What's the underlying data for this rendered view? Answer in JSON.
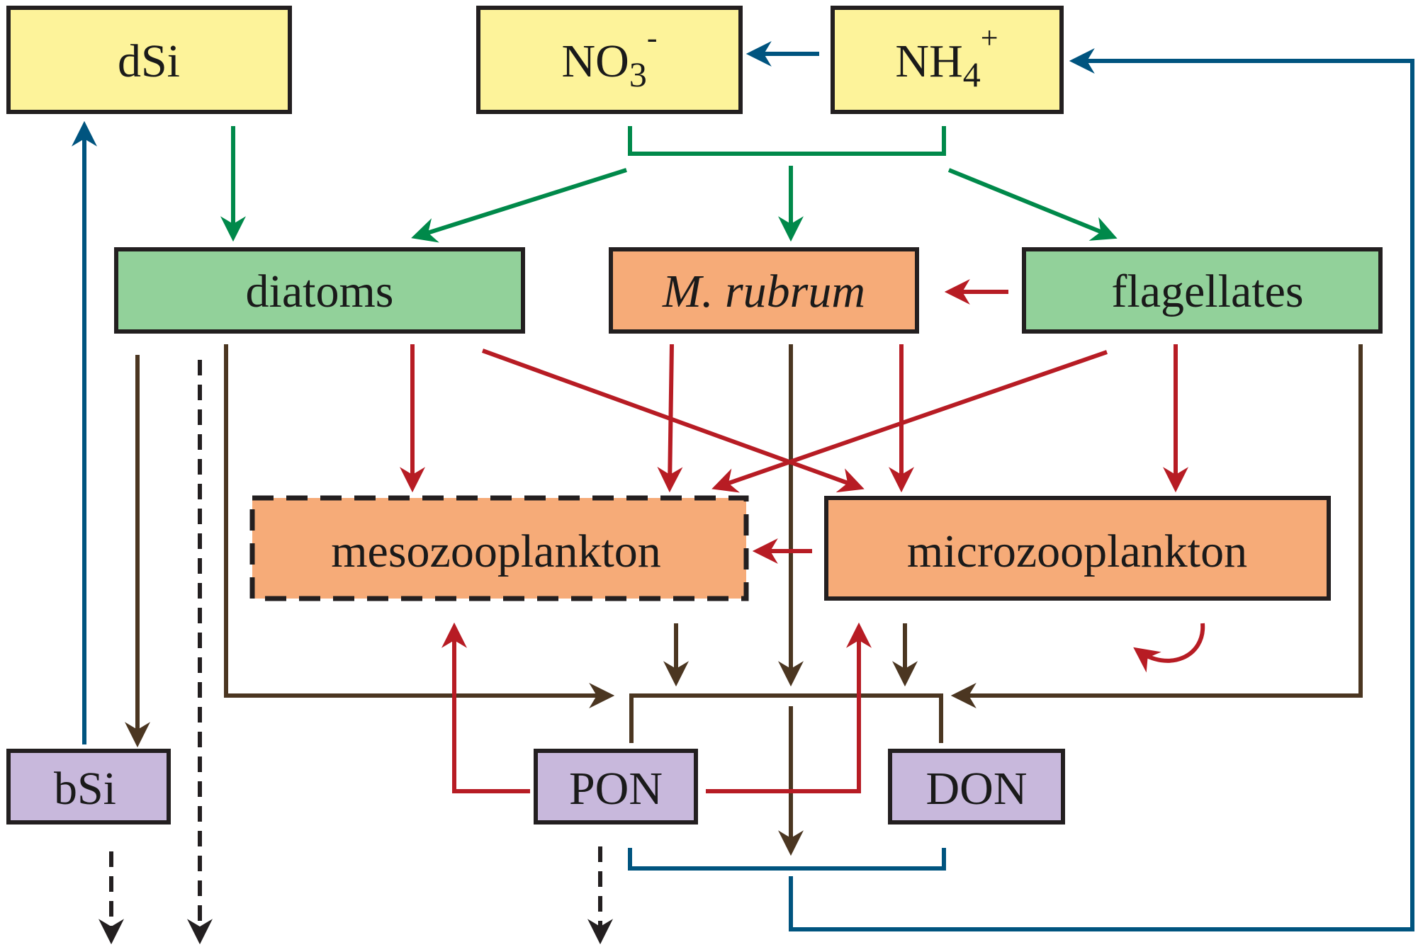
{
  "colors": {
    "nutrient_fill": "#fdf39a",
    "phyto_fill": "#92d19a",
    "zoo_fill": "#f6ab78",
    "detritus_fill": "#c8b8dc",
    "box_stroke": "#231f20",
    "uptake_green": "#00894a",
    "grazing_red": "#b71c24",
    "mortality_brown": "#4b3621",
    "remin_blue": "#00547f",
    "export_black": "#231f20"
  },
  "boxes": {
    "dSi": "dSi",
    "no3_main": "NO",
    "no3_sub": "3",
    "no3_sup": "-",
    "nh4_main": "NH",
    "nh4_sub": "4",
    "nh4_sup": "+",
    "diatoms": "diatoms",
    "m_rubrum": "M. rubrum",
    "flagellates": "flagellates",
    "mesozooplankton": "mesozooplankton",
    "microzooplankton": "microzooplankton",
    "bSi": "bSi",
    "PON": "PON",
    "DON": "DON"
  }
}
